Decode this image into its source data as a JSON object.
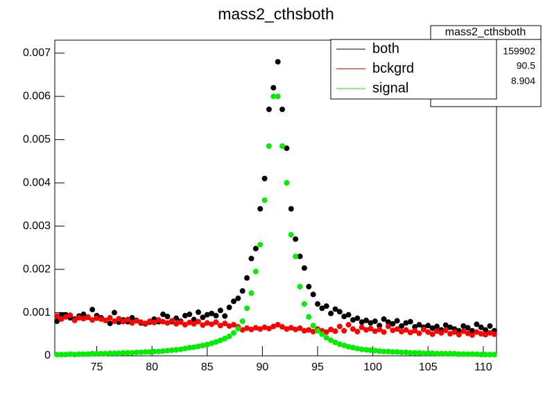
{
  "chart_data": {
    "type": "scatter",
    "title": "mass2_cthsboth",
    "x": [
      71.4,
      71.8,
      72.2,
      72.6,
      73,
      73.4,
      73.8,
      74.2,
      74.6,
      75,
      75.4,
      75.8,
      76.2,
      76.6,
      77,
      77.4,
      77.8,
      78.2,
      78.6,
      79,
      79.4,
      79.8,
      80.2,
      80.6,
      81,
      81.4,
      81.8,
      82.2,
      82.6,
      83,
      83.4,
      83.8,
      84.2,
      84.6,
      85,
      85.4,
      85.8,
      86.2,
      86.6,
      87,
      87.4,
      87.8,
      88.2,
      88.6,
      89,
      89.4,
      89.8,
      90.2,
      90.6,
      91,
      91.4,
      91.8,
      92.2,
      92.6,
      93,
      93.4,
      93.8,
      94.2,
      94.6,
      95,
      95.4,
      95.8,
      96.2,
      96.6,
      97,
      97.4,
      97.8,
      98.2,
      98.6,
      99,
      99.4,
      99.8,
      100.2,
      100.6,
      101,
      101.4,
      101.8,
      102.2,
      102.6,
      103,
      103.4,
      103.8,
      104.2,
      104.6,
      105,
      105.4,
      105.8,
      106.2,
      106.6,
      107,
      107.4,
      107.8,
      108.2,
      108.6,
      109,
      109.4,
      109.8,
      110.2,
      110.6,
      111
    ],
    "series": [
      {
        "name": "both",
        "color": "#000000",
        "values": [
          0.0008,
          0.00095,
          0.00095,
          0.00088,
          0.00085,
          0.00092,
          0.00096,
          0.00089,
          0.00107,
          0.00093,
          0.00088,
          0.00082,
          0.00075,
          0.001,
          0.00078,
          0.00083,
          0.00079,
          0.00088,
          0.00082,
          0.00076,
          0.00074,
          0.00078,
          0.00085,
          0.00079,
          0.00096,
          0.00091,
          0.00079,
          0.00087,
          0.0008,
          0.00093,
          0.00096,
          0.00084,
          0.00101,
          0.00089,
          0.00095,
          0.00098,
          0.00093,
          0.00105,
          0.00092,
          0.00112,
          0.00126,
          0.00133,
          0.0015,
          0.0018,
          0.00225,
          0.00248,
          0.0034,
          0.0041,
          0.0057,
          0.0062,
          0.0068,
          0.0057,
          0.0048,
          0.0034,
          0.0027,
          0.0023,
          0.00203,
          0.0016,
          0.00142,
          0.0012,
          0.0011,
          0.00115,
          0.00098,
          0.00108,
          0.00102,
          0.00091,
          0.00095,
          0.00083,
          0.00087,
          0.00078,
          0.00082,
          0.00076,
          0.0008,
          0.0007,
          0.00085,
          0.00078,
          0.00074,
          0.00081,
          0.00069,
          0.00076,
          0.00079,
          0.00067,
          0.00072,
          0.00066,
          0.0007,
          0.00064,
          0.00068,
          0.0006,
          0.00071,
          0.00066,
          0.00062,
          0.00058,
          0.00069,
          0.00065,
          0.00058,
          0.00073,
          0.00066,
          0.0006,
          0.00069,
          0.00058
        ]
      },
      {
        "name": "bckgrd",
        "color": "#ff0000",
        "values": [
          0.00092,
          0.00085,
          0.0009,
          0.00094,
          0.00082,
          0.00088,
          0.00086,
          0.0009,
          0.00083,
          0.00087,
          0.00085,
          0.00082,
          0.00088,
          0.0008,
          0.00086,
          0.00079,
          0.00084,
          0.00076,
          0.00081,
          0.00078,
          0.00075,
          0.0008,
          0.00077,
          0.00083,
          0.00079,
          0.00076,
          0.00081,
          0.00074,
          0.00078,
          0.00072,
          0.00077,
          0.00074,
          0.00079,
          0.00071,
          0.00076,
          0.00073,
          0.00078,
          0.0007,
          0.00075,
          0.00069,
          0.00072,
          0.00067,
          0.0006,
          0.00064,
          0.00061,
          0.00065,
          0.00062,
          0.00066,
          0.00063,
          0.00068,
          0.00072,
          0.00067,
          0.00062,
          0.00065,
          0.00061,
          0.00064,
          0.00058,
          0.0006,
          0.00056,
          0.00062,
          0.00058,
          0.00055,
          0.00061,
          0.00057,
          0.00068,
          0.00058,
          0.00072,
          0.00062,
          0.00056,
          0.00066,
          0.0006,
          0.00063,
          0.00057,
          0.00061,
          0.00055,
          0.00068,
          0.00059,
          0.00062,
          0.00056,
          0.0006,
          0.00054,
          0.00058,
          0.00052,
          0.00061,
          0.00055,
          0.0005,
          0.00057,
          0.00053,
          0.00059,
          0.00051,
          0.00055,
          0.00049,
          0.00057,
          0.00052,
          0.00048,
          0.00055,
          0.00051,
          0.00049,
          0.00053,
          0.0005
        ]
      },
      {
        "name": "signal",
        "color": "#00ee00",
        "values": [
          3e-05,
          3e-05,
          3e-05,
          4e-05,
          3e-05,
          4e-05,
          4e-05,
          4e-05,
          5e-05,
          5e-05,
          5e-05,
          5e-05,
          6e-05,
          6e-05,
          6e-05,
          7e-05,
          7e-05,
          7e-05,
          8e-05,
          8e-05,
          9e-05,
          9e-05,
          0.0001,
          0.0001,
          0.00011,
          0.00012,
          0.00013,
          0.00014,
          0.00015,
          0.00017,
          0.00019,
          0.0002,
          0.00022,
          0.00024,
          0.00026,
          0.00029,
          0.00032,
          0.00036,
          0.0004,
          0.00045,
          0.00053,
          0.00063,
          0.0008,
          0.0011,
          0.00145,
          0.00195,
          0.00257,
          0.0036,
          0.00485,
          0.006,
          0.006,
          0.00485,
          0.004,
          0.0028,
          0.0023,
          0.0016,
          0.0012,
          0.0009,
          0.0007,
          0.00058,
          0.0005,
          0.00042,
          0.00036,
          0.00031,
          0.00027,
          0.00024,
          0.00021,
          0.00019,
          0.00017,
          0.00015,
          0.00014,
          0.00013,
          0.00012,
          0.00011,
          0.0001,
          0.0001,
          9e-05,
          9e-05,
          8e-05,
          8e-05,
          7e-05,
          7e-05,
          7e-05,
          6e-05,
          6e-05,
          6e-05,
          5e-05,
          5e-05,
          5e-05,
          5e-05,
          5e-05,
          4e-05,
          4e-05,
          4e-05,
          4e-05,
          4e-05,
          3e-05,
          3e-05,
          3e-05,
          3e-05
        ]
      }
    ],
    "xlim": [
      71.2,
      111.2
    ],
    "xticks": [
      75,
      80,
      85,
      90,
      95,
      100,
      105,
      110
    ],
    "ylim": [
      0,
      0.0073
    ],
    "yticks": [
      0,
      0.001,
      0.002,
      0.003,
      0.004,
      0.005,
      0.006,
      0.007
    ],
    "legend": "top-right",
    "stats": {
      "title": "mass2_cthsboth",
      "values": [
        159902,
        90.5,
        8.904
      ]
    }
  }
}
